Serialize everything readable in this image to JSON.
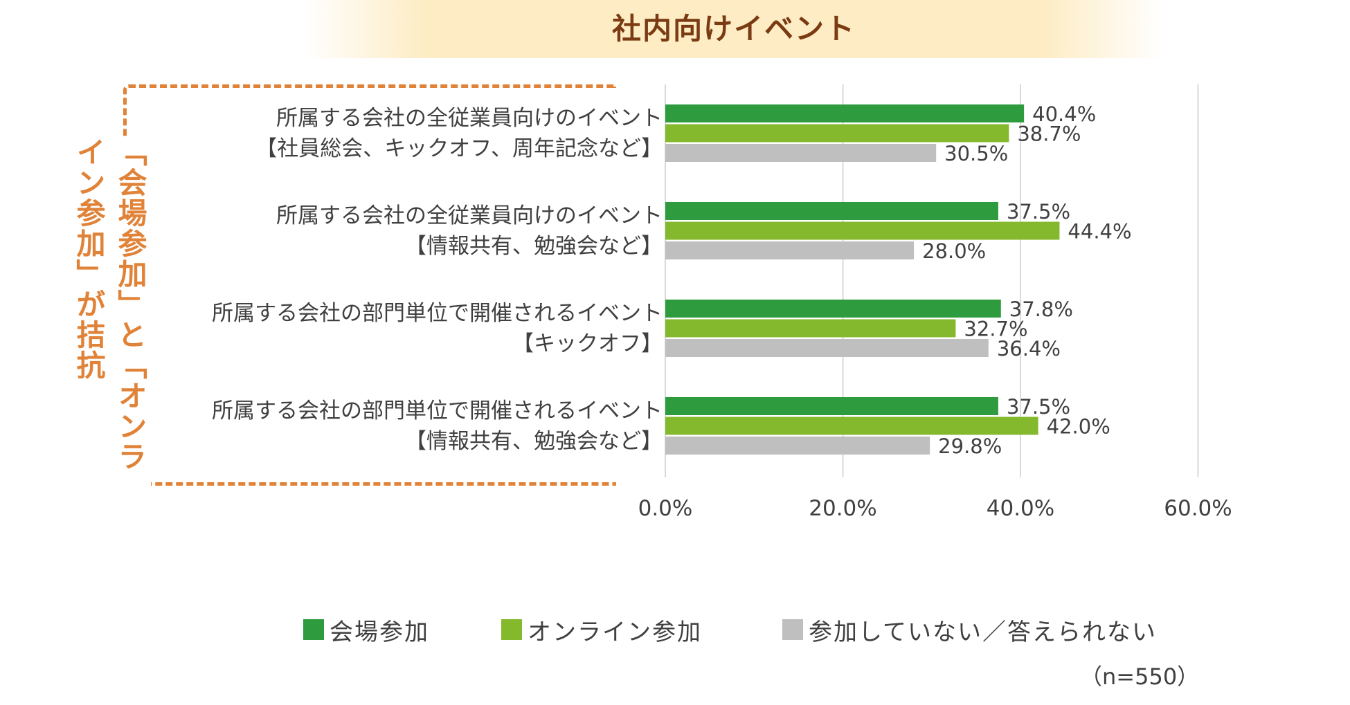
{
  "title": "社内向けイベント",
  "callout": {
    "text": "「会場参加」と「オンライン参加」が拮抗",
    "color": "#e08338"
  },
  "chart_data": {
    "type": "bar",
    "orientation": "horizontal",
    "categories": [
      {
        "line1": "所属する会社の全従業員向けのイベント",
        "line2": "【社員総会、キックオフ、周年記念など】"
      },
      {
        "line1": "所属する会社の全従業員向けのイベント",
        "line2": "【情報共有、勉強会など】"
      },
      {
        "line1": "所属する会社の部門単位で開催されるイベント",
        "line2": "【キックオフ】"
      },
      {
        "line1": "所属する会社の部門単位で開催されるイベント",
        "line2": "【情報共有、勉強会など】"
      }
    ],
    "series": [
      {
        "name": "会場参加",
        "color": "#2e9b3f",
        "values": [
          40.4,
          37.5,
          37.8,
          37.5
        ]
      },
      {
        "name": "オンライン参加",
        "color": "#84b92d",
        "values": [
          38.7,
          44.4,
          32.7,
          42.0
        ]
      },
      {
        "name": "参加していない／答えられない",
        "color": "#bfbfbf",
        "values": [
          30.5,
          28.0,
          36.4,
          29.8
        ]
      }
    ],
    "value_suffix": "%",
    "xlim": [
      0,
      60
    ],
    "xticks": [
      "0.0%",
      "20.0%",
      "40.0%",
      "60.0%"
    ],
    "grid": true,
    "legend_position": "bottom"
  },
  "note": "（n=550）"
}
